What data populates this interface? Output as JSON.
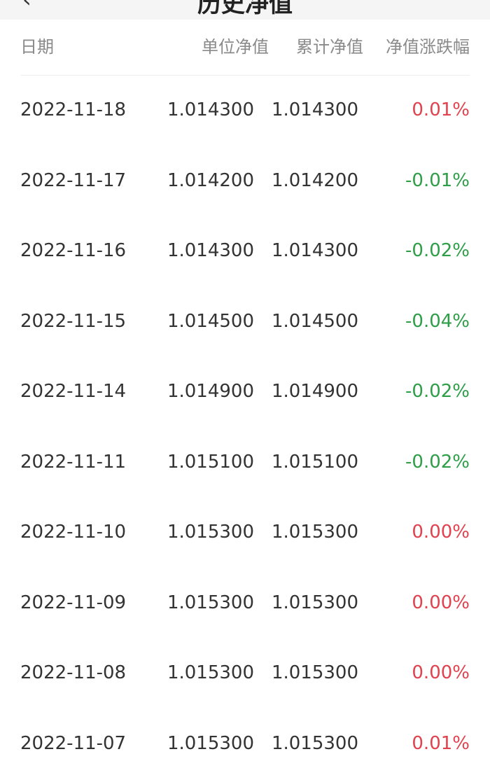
{
  "nav": {
    "title": "历史净值",
    "back_icon": "chevron-left-icon"
  },
  "colors": {
    "up": "#e0434f",
    "down": "#2e9e48"
  },
  "columns": [
    "日期",
    "单位净值",
    "累计净值",
    "净值涨跌幅"
  ],
  "rows": [
    {
      "date": "2022-11-18",
      "unit": "1.014300",
      "acc": "1.014300",
      "change": "0.01%",
      "dir": "up"
    },
    {
      "date": "2022-11-17",
      "unit": "1.014200",
      "acc": "1.014200",
      "change": "-0.01%",
      "dir": "down"
    },
    {
      "date": "2022-11-16",
      "unit": "1.014300",
      "acc": "1.014300",
      "change": "-0.02%",
      "dir": "down"
    },
    {
      "date": "2022-11-15",
      "unit": "1.014500",
      "acc": "1.014500",
      "change": "-0.04%",
      "dir": "down"
    },
    {
      "date": "2022-11-14",
      "unit": "1.014900",
      "acc": "1.014900",
      "change": "-0.02%",
      "dir": "down"
    },
    {
      "date": "2022-11-11",
      "unit": "1.015100",
      "acc": "1.015100",
      "change": "-0.02%",
      "dir": "down"
    },
    {
      "date": "2022-11-10",
      "unit": "1.015300",
      "acc": "1.015300",
      "change": "0.00%",
      "dir": "up"
    },
    {
      "date": "2022-11-09",
      "unit": "1.015300",
      "acc": "1.015300",
      "change": "0.00%",
      "dir": "up"
    },
    {
      "date": "2022-11-08",
      "unit": "1.015300",
      "acc": "1.015300",
      "change": "0.00%",
      "dir": "up"
    },
    {
      "date": "2022-11-07",
      "unit": "1.015300",
      "acc": "1.015300",
      "change": "0.01%",
      "dir": "up"
    }
  ]
}
